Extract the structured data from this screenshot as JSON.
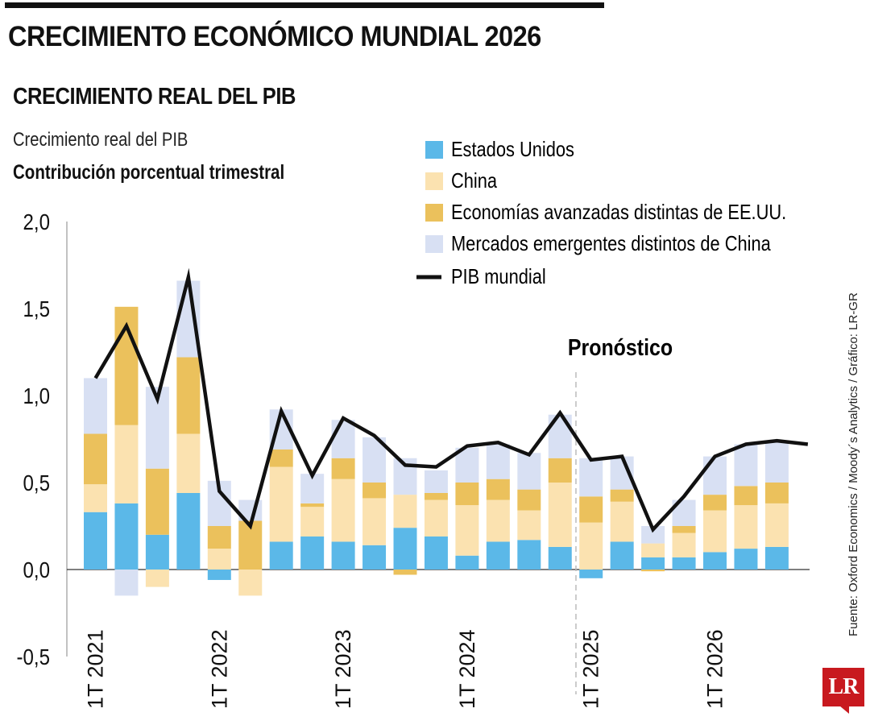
{
  "header": {
    "title": "CRECIMIENTO ECONÓMICO MUNDIAL 2026",
    "subtitle": "CRECIMIENTO REAL DEL PIB",
    "description_line1": "Crecimiento real del PIB",
    "description_line2": "Contribución porcentual trimestral"
  },
  "colors": {
    "us": "#5bb8e8",
    "china": "#fbe2b0",
    "adv": "#ebc15c",
    "em": "#d8e0f3",
    "line": "#111111",
    "forecast": "#bbbbbb"
  },
  "source": "Fuente: Oxford Economics / Moody´s Analytics / Gráfico: LR-GR",
  "logo": "LR",
  "chart_data": {
    "type": "bar",
    "stacked": true,
    "title": "Crecimiento real del PIB",
    "subtitle": "Contribución porcentual trimestral",
    "ylim": [
      -0.5,
      2.0
    ],
    "yticks": [
      "2,0",
      "1,5",
      "1,0",
      "0,5",
      "0,0",
      "-0,5"
    ],
    "ytick_values": [
      2.0,
      1.5,
      1.0,
      0.5,
      0.0,
      -0.5
    ],
    "xtick_labels": [
      "1T 2021",
      "1T 2022",
      "1T 2023",
      "1T 2024",
      "1T 2025",
      "1T 2026"
    ],
    "xtick_indices": [
      0,
      4,
      8,
      12,
      16,
      20
    ],
    "categories": [
      "1T 2021",
      "2T 2021",
      "3T 2021",
      "4T 2021",
      "1T 2022",
      "2T 2022",
      "3T 2022",
      "4T 2022",
      "1T 2023",
      "2T 2023",
      "3T 2023",
      "4T 2023",
      "1T 2024",
      "2T 2024",
      "3T 2024",
      "4T 2024",
      "1T 2025",
      "2T 2025",
      "3T 2025",
      "4T 2025",
      "1T 2026",
      "2T 2026",
      "3T 2026",
      "4T 2026"
    ],
    "series": [
      {
        "name": "Estados Unidos",
        "key": "us",
        "values": [
          0.33,
          0.38,
          0.2,
          0.44,
          -0.06,
          0.0,
          0.16,
          0.19,
          0.16,
          0.14,
          0.24,
          0.19,
          0.08,
          0.16,
          0.17,
          0.13,
          -0.05,
          0.16,
          0.07,
          0.07,
          0.1,
          0.12,
          0.13,
          0.0
        ]
      },
      {
        "name": "China",
        "key": "china",
        "values": [
          0.16,
          0.45,
          -0.1,
          0.34,
          0.12,
          -0.15,
          0.43,
          0.17,
          0.36,
          0.27,
          0.19,
          0.21,
          0.29,
          0.24,
          0.17,
          0.37,
          0.27,
          0.23,
          0.08,
          0.14,
          0.24,
          0.25,
          0.25,
          0.0
        ]
      },
      {
        "name": "Economías avanzadas distintas de EE.UU.",
        "key": "adv",
        "values": [
          0.29,
          0.68,
          0.38,
          0.44,
          0.13,
          0.28,
          0.1,
          0.02,
          0.12,
          0.09,
          -0.03,
          0.04,
          0.13,
          0.12,
          0.12,
          0.14,
          0.15,
          0.07,
          -0.01,
          0.04,
          0.09,
          0.11,
          0.12,
          0.0
        ]
      },
      {
        "name": "Mercados emergentes distintos de China",
        "key": "em",
        "values": [
          0.32,
          -0.15,
          0.47,
          0.44,
          0.26,
          0.12,
          0.23,
          0.17,
          0.22,
          0.26,
          0.21,
          0.13,
          0.2,
          0.2,
          0.21,
          0.25,
          0.22,
          0.19,
          0.1,
          0.15,
          0.22,
          0.24,
          0.24,
          0.0
        ]
      }
    ],
    "line": {
      "name": "PIB mundial",
      "values": [
        1.1,
        1.4,
        0.98,
        1.68,
        0.45,
        0.25,
        0.91,
        0.54,
        0.87,
        0.77,
        0.6,
        0.59,
        0.71,
        0.73,
        0.66,
        0.9,
        0.63,
        0.65,
        0.23,
        0.42,
        0.65,
        0.72,
        0.74,
        0.72
      ]
    },
    "forecast_label": "Pronóstico",
    "forecast_start_index": 16,
    "legend_position": "top-right"
  }
}
